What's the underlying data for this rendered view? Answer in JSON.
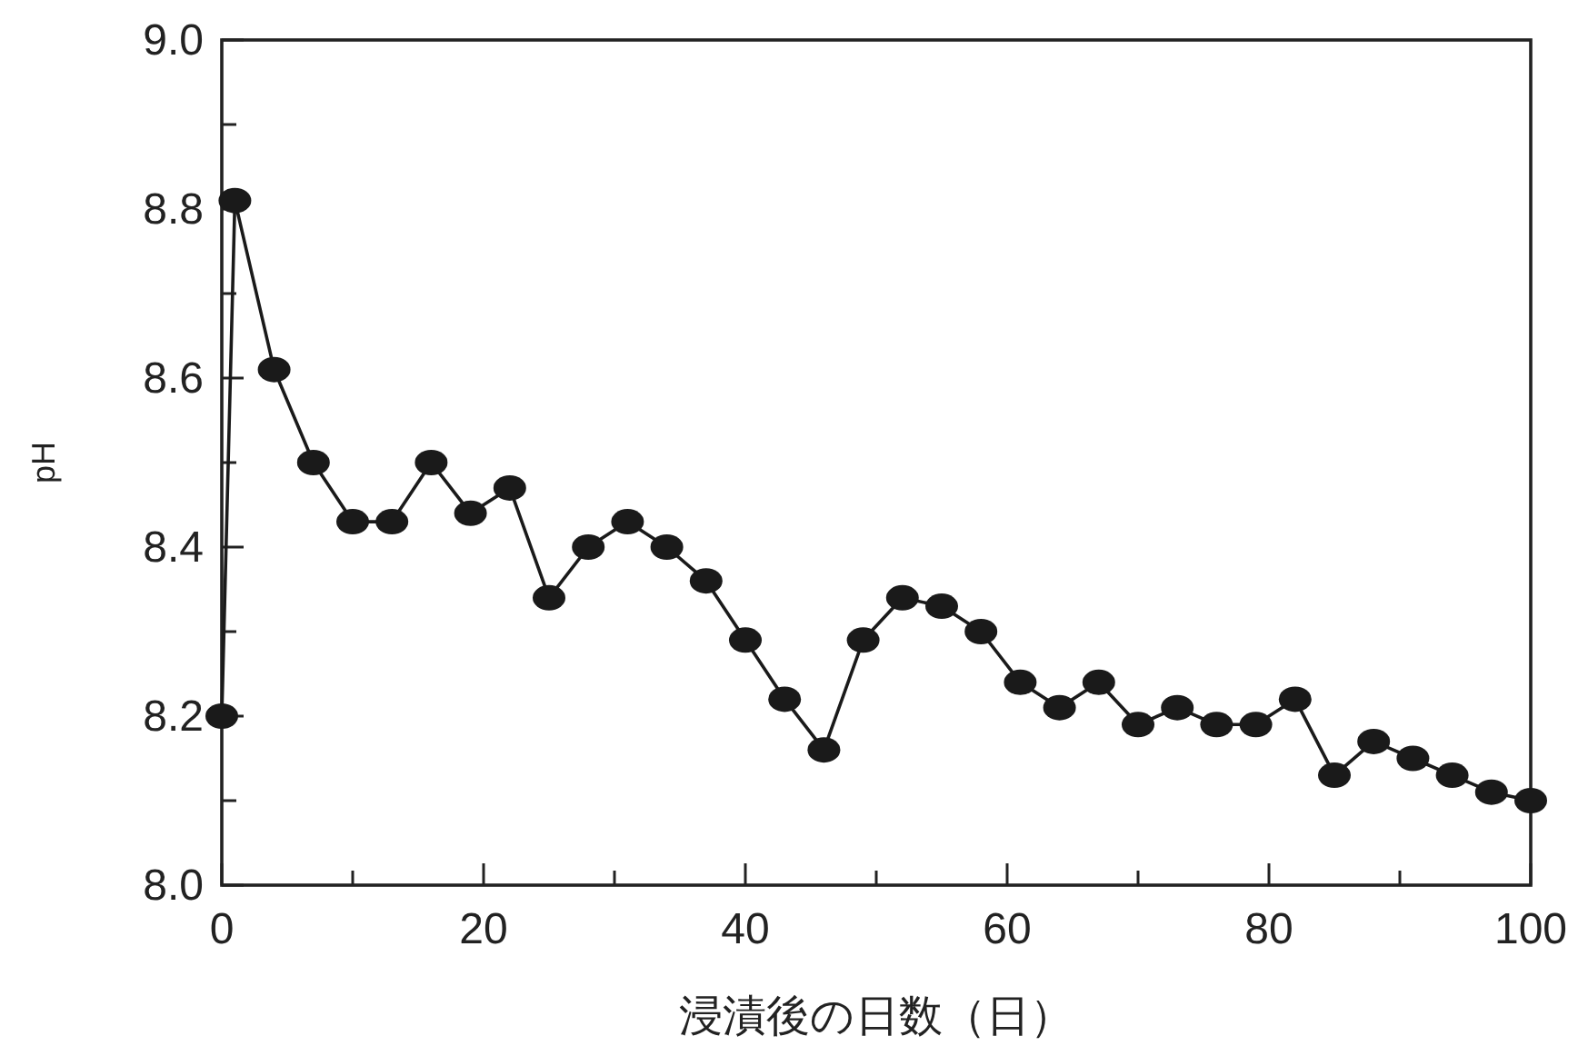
{
  "chart_data": {
    "type": "line",
    "xlabel": "浸漬後の日数（日）",
    "ylabel": "pH",
    "x": [
      0,
      1,
      4,
      7,
      10,
      13,
      16,
      19,
      22,
      25,
      28,
      31,
      34,
      37,
      40,
      43,
      46,
      49,
      52,
      55,
      58,
      61,
      64,
      67,
      70,
      73,
      76,
      79,
      82,
      85,
      88,
      91,
      94,
      97,
      100
    ],
    "series": [
      {
        "color": "#1a1a1a",
        "values": [
          8.2,
          8.81,
          8.61,
          8.5,
          8.43,
          8.43,
          8.5,
          8.44,
          8.47,
          8.34,
          8.4,
          8.43,
          8.4,
          8.36,
          8.29,
          8.22,
          8.16,
          8.29,
          8.34,
          8.33,
          8.3,
          8.24,
          8.21,
          8.24,
          8.19,
          8.21,
          8.19,
          8.19,
          8.22,
          8.13,
          8.17,
          8.15,
          8.13,
          8.11,
          8.1
        ]
      }
    ],
    "xlim": [
      0,
      100
    ],
    "xticks": [
      0,
      {
        "value": 10,
        "label": null
      },
      20,
      {
        "value": 30,
        "label": null
      },
      40,
      {
        "value": 50,
        "label": null
      },
      60,
      {
        "value": 70,
        "label": null
      },
      80,
      {
        "value": 90,
        "label": null
      },
      100
    ],
    "ylim": [
      8.0,
      9.0
    ],
    "yticks": [
      {
        "value": 8.0,
        "label": "8.0"
      },
      {
        "value": 8.1,
        "label": null
      },
      8.2,
      {
        "value": 8.3,
        "label": null
      },
      8.4,
      {
        "value": 8.5,
        "label": null
      },
      8.6,
      {
        "value": 8.7,
        "label": null
      },
      8.8,
      {
        "value": 8.9,
        "label": null
      },
      {
        "value": 9.0,
        "label": "9.0"
      }
    ],
    "marker": "circle",
    "line_style": "solid",
    "grid": false
  }
}
